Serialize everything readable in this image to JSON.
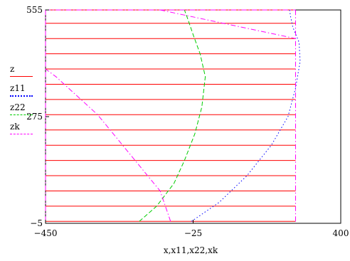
{
  "chart_data": {
    "type": "line",
    "title": "",
    "xlabel": "x,x11,x22,xk",
    "ylabel": "",
    "xlim": [
      -450,
      400
    ],
    "ylim": [
      -5,
      555
    ],
    "x_ticks": [
      {
        "value": -450,
        "label": "−450"
      },
      {
        "value": -25,
        "label": "−25"
      },
      {
        "value": 400,
        "label": "400"
      }
    ],
    "y_ticks": [
      {
        "value": 555,
        "label": "555"
      },
      {
        "value": 275,
        "label": "275"
      },
      {
        "value": -5,
        "label": "−5"
      }
    ],
    "grid": false,
    "legend_position": "left",
    "series": [
      {
        "name": "z",
        "color": "#ff0000",
        "style": "solid",
        "segments": [
          [
            [
              -450,
              0
            ],
            [
              270,
              0
            ]
          ],
          [
            [
              -450,
              40
            ],
            [
              270,
              40
            ]
          ],
          [
            [
              -450,
              80
            ],
            [
              270,
              80
            ]
          ],
          [
            [
              -450,
              120
            ],
            [
              270,
              120
            ]
          ],
          [
            [
              -450,
              160
            ],
            [
              270,
              160
            ]
          ],
          [
            [
              -450,
              200
            ],
            [
              270,
              200
            ]
          ],
          [
            [
              -450,
              240
            ],
            [
              270,
              240
            ]
          ],
          [
            [
              -450,
              280
            ],
            [
              270,
              280
            ]
          ],
          [
            [
              -450,
              320
            ],
            [
              270,
              320
            ]
          ],
          [
            [
              -450,
              360
            ],
            [
              270,
              360
            ]
          ],
          [
            [
              -450,
              400
            ],
            [
              270,
              400
            ]
          ],
          [
            [
              -450,
              440
            ],
            [
              270,
              440
            ]
          ],
          [
            [
              -450,
              480
            ],
            [
              270,
              480
            ]
          ],
          [
            [
              -450,
              520
            ],
            [
              270,
              520
            ]
          ],
          [
            [
              -450,
              555
            ],
            [
              270,
              555
            ]
          ]
        ]
      },
      {
        "name": "z11",
        "color": "#0000ff",
        "style": "dotted",
        "segments": [
          [
            [
              -30,
              0
            ],
            [
              50,
              50
            ],
            [
              130,
              120
            ],
            [
              200,
              200
            ],
            [
              248,
              275
            ],
            [
              270,
              350
            ],
            [
              283,
              420
            ],
            [
              280,
              470
            ],
            [
              262,
              510
            ],
            [
              255,
              540
            ],
            [
              253,
              555
            ]
          ]
        ]
      },
      {
        "name": "z22",
        "color": "#00cc00",
        "style": "dashed",
        "segments": [
          [
            [
              -180,
              0
            ],
            [
              -130,
              40
            ],
            [
              -80,
              100
            ],
            [
              -50,
              160
            ],
            [
              -20,
              230
            ],
            [
              0,
              300
            ],
            [
              10,
              380
            ],
            [
              -5,
              440
            ],
            [
              -25,
              490
            ],
            [
              -40,
              530
            ],
            [
              -50,
              555
            ]
          ]
        ]
      },
      {
        "name": "zk",
        "color": "#ff00ff",
        "style": "dashdot",
        "segments": [
          [
            [
              -450,
              0
            ],
            [
              -450,
              555
            ]
          ],
          [
            [
              270,
              0
            ],
            [
              270,
              555
            ]
          ],
          [
            [
              -450,
              555
            ],
            [
              270,
              555
            ]
          ],
          [
            [
              -90,
              0
            ],
            [
              -120,
              80
            ],
            [
              -300,
              280
            ],
            [
              -420,
              380
            ],
            [
              -450,
              400
            ]
          ],
          [
            [
              -120,
              555
            ],
            [
              270,
              480
            ]
          ]
        ]
      }
    ]
  }
}
